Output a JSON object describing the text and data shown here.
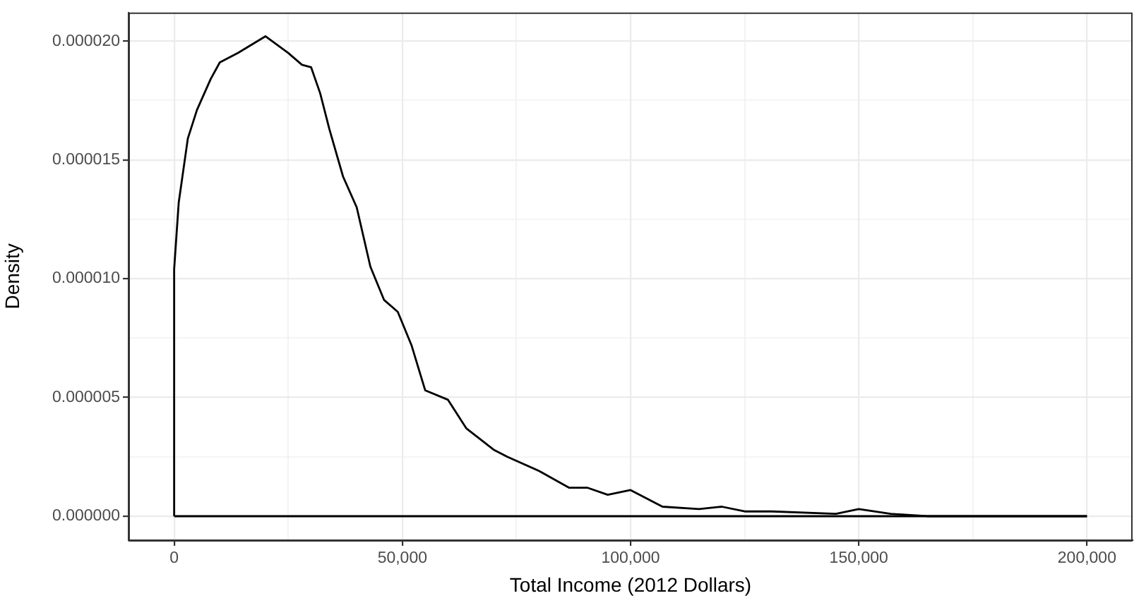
{
  "chart_data": {
    "type": "line",
    "xlabel": "Total Income (2012 Dollars)",
    "ylabel": "Density",
    "xlim": [
      -10000,
      210000
    ],
    "ylim": [
      -1.01e-06,
      2.12e-05
    ],
    "xticks": [
      0,
      {
        "value": 25000,
        "label": null
      },
      {
        "value": 50000,
        "label": "50,000"
      },
      {
        "value": 75000,
        "label": null
      },
      {
        "value": 100000,
        "label": "100,000"
      },
      {
        "value": 125000,
        "label": null
      },
      {
        "value": 150000,
        "label": "150,000"
      },
      {
        "value": 175000,
        "label": null
      },
      {
        "value": 200000,
        "label": "200,000"
      }
    ],
    "yticks": [
      {
        "value": 0,
        "label": "0.000000"
      },
      {
        "value": 2.5e-06,
        "label": null
      },
      {
        "value": 5e-06,
        "label": "0.000005"
      },
      {
        "value": 7.5e-06,
        "label": null
      },
      {
        "value": 1e-05,
        "label": "0.000010"
      },
      {
        "value": 1.25e-05,
        "label": null
      },
      {
        "value": 1.5e-05,
        "label": "0.000015"
      },
      {
        "value": 1.75e-05,
        "label": null
      },
      {
        "value": 2e-05,
        "label": "0.000020"
      }
    ],
    "grid": true,
    "legend": false,
    "line_style": "solid",
    "series": [
      {
        "color": "#000000",
        "x": [
          0,
          0,
          1000,
          3000,
          5000,
          8000,
          10000,
          14000,
          20000,
          25000,
          28000,
          30000,
          32000,
          34000,
          37000,
          40000,
          43000,
          46000,
          49000,
          52000,
          55000,
          60000,
          64000,
          70000,
          73000,
          80000,
          86500,
          90500,
          95000,
          100000,
          107000,
          115000,
          120000,
          125000,
          131000,
          145000,
          150000,
          157000,
          165000,
          200000
        ],
        "values": [
          0,
          1.04e-05,
          1.32e-05,
          1.59e-05,
          1.71e-05,
          1.84e-05,
          1.91e-05,
          1.95e-05,
          2.02e-05,
          1.95e-05,
          1.9e-05,
          1.89e-05,
          1.78e-05,
          1.63e-05,
          1.43e-05,
          1.3e-05,
          1.05e-05,
          9.1e-06,
          8.6e-06,
          7.2e-06,
          5.3e-06,
          4.9e-06,
          3.7e-06,
          2.8e-06,
          2.5e-06,
          1.9e-06,
          1.2e-06,
          1.2e-06,
          9e-07,
          1.1e-06,
          4e-07,
          3e-07,
          4e-07,
          2e-07,
          2e-07,
          1e-07,
          3e-07,
          1e-07,
          0,
          0
        ]
      },
      {
        "color": "#000000",
        "x": [
          0,
          200000
        ],
        "values": [
          0,
          0
        ]
      }
    ]
  }
}
